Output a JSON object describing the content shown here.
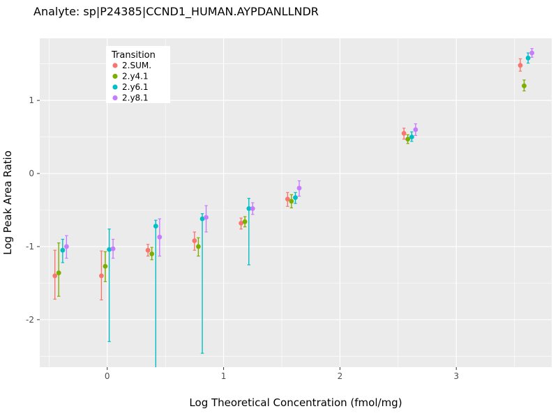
{
  "chart_data": {
    "type": "scatter",
    "title": "Analyte: sp|P24385|CCND1_HUMAN.AYPDANLLNDR",
    "xlabel": "Log Theoretical Concentration (fmol/mg)",
    "ylabel": "Log Peak Area Ratio",
    "xlim": [
      -0.58,
      3.82
    ],
    "ylim": [
      -2.65,
      1.85
    ],
    "xticks": [
      0,
      1,
      2,
      3
    ],
    "yticks": [
      -2,
      -1,
      0,
      1
    ],
    "grid": true,
    "panel_bg": "#EBEBEB",
    "grid_color": "#FFFFFF",
    "axis_text_color": "#4D4D4D",
    "legend": {
      "title": "Transition",
      "position": "top-left-inset",
      "bg": "#FFFFFF"
    },
    "dodge_offsets": [
      -0.05,
      -0.017,
      0.017,
      0.05
    ],
    "series": [
      {
        "name": "2.SUM.",
        "color": "#F8766D",
        "points": [
          {
            "x": -0.4,
            "y": -1.4,
            "ymin": -1.72,
            "ymax": -1.05
          },
          {
            "x": 0.0,
            "y": -1.4,
            "ymin": -1.73,
            "ymax": -1.06
          },
          {
            "x": 0.4,
            "y": -1.05,
            "ymin": -1.13,
            "ymax": -0.97
          },
          {
            "x": 0.8,
            "y": -0.92,
            "ymin": -1.05,
            "ymax": -0.8
          },
          {
            "x": 1.2,
            "y": -0.68,
            "ymin": -0.76,
            "ymax": -0.61
          },
          {
            "x": 1.6,
            "y": -0.35,
            "ymin": -0.45,
            "ymax": -0.26
          },
          {
            "x": 2.6,
            "y": 0.55,
            "ymin": 0.47,
            "ymax": 0.62
          },
          {
            "x": 3.6,
            "y": 1.48,
            "ymin": 1.4,
            "ymax": 1.57
          }
        ]
      },
      {
        "name": "2.y4.1",
        "color": "#7CAE00",
        "points": [
          {
            "x": -0.4,
            "y": -1.36,
            "ymin": -1.68,
            "ymax": -0.95
          },
          {
            "x": 0.0,
            "y": -1.27,
            "ymin": -1.48,
            "ymax": -1.07
          },
          {
            "x": 0.4,
            "y": -1.1,
            "ymin": -1.18,
            "ymax": -1.01
          },
          {
            "x": 0.8,
            "y": -1.0,
            "ymin": -1.13,
            "ymax": -0.88
          },
          {
            "x": 1.2,
            "y": -0.66,
            "ymin": -0.73,
            "ymax": -0.59
          },
          {
            "x": 1.6,
            "y": -0.38,
            "ymin": -0.47,
            "ymax": -0.29
          },
          {
            "x": 2.6,
            "y": 0.47,
            "ymin": 0.41,
            "ymax": 0.53
          },
          {
            "x": 3.6,
            "y": 1.2,
            "ymin": 1.13,
            "ymax": 1.28
          }
        ]
      },
      {
        "name": "2.y6.1",
        "color": "#00BFC4",
        "points": [
          {
            "x": -0.4,
            "y": -1.05,
            "ymin": -1.22,
            "ymax": -0.9
          },
          {
            "x": 0.0,
            "y": -1.04,
            "ymin": -2.3,
            "ymax": -0.76
          },
          {
            "x": 0.4,
            "y": -0.72,
            "ymin": -2.75,
            "ymax": -0.64
          },
          {
            "x": 0.8,
            "y": -0.62,
            "ymin": -2.46,
            "ymax": -0.55
          },
          {
            "x": 1.2,
            "y": -0.48,
            "ymin": -1.25,
            "ymax": -0.34
          },
          {
            "x": 1.6,
            "y": -0.33,
            "ymin": -0.41,
            "ymax": -0.26
          },
          {
            "x": 2.6,
            "y": 0.5,
            "ymin": 0.44,
            "ymax": 0.57
          },
          {
            "x": 3.6,
            "y": 1.58,
            "ymin": 1.51,
            "ymax": 1.65
          }
        ]
      },
      {
        "name": "2.y8.1",
        "color": "#C77CFF",
        "points": [
          {
            "x": -0.4,
            "y": -1.0,
            "ymin": -1.16,
            "ymax": -0.85
          },
          {
            "x": 0.0,
            "y": -1.03,
            "ymin": -1.16,
            "ymax": -0.9
          },
          {
            "x": 0.4,
            "y": -0.87,
            "ymin": -1.13,
            "ymax": -0.62
          },
          {
            "x": 0.8,
            "y": -0.6,
            "ymin": -0.8,
            "ymax": -0.44
          },
          {
            "x": 1.2,
            "y": -0.48,
            "ymin": -0.56,
            "ymax": -0.4
          },
          {
            "x": 1.6,
            "y": -0.2,
            "ymin": -0.31,
            "ymax": -0.1
          },
          {
            "x": 2.6,
            "y": 0.6,
            "ymin": 0.52,
            "ymax": 0.68
          },
          {
            "x": 3.6,
            "y": 1.65,
            "ymin": 1.59,
            "ymax": 1.71
          }
        ]
      }
    ]
  }
}
